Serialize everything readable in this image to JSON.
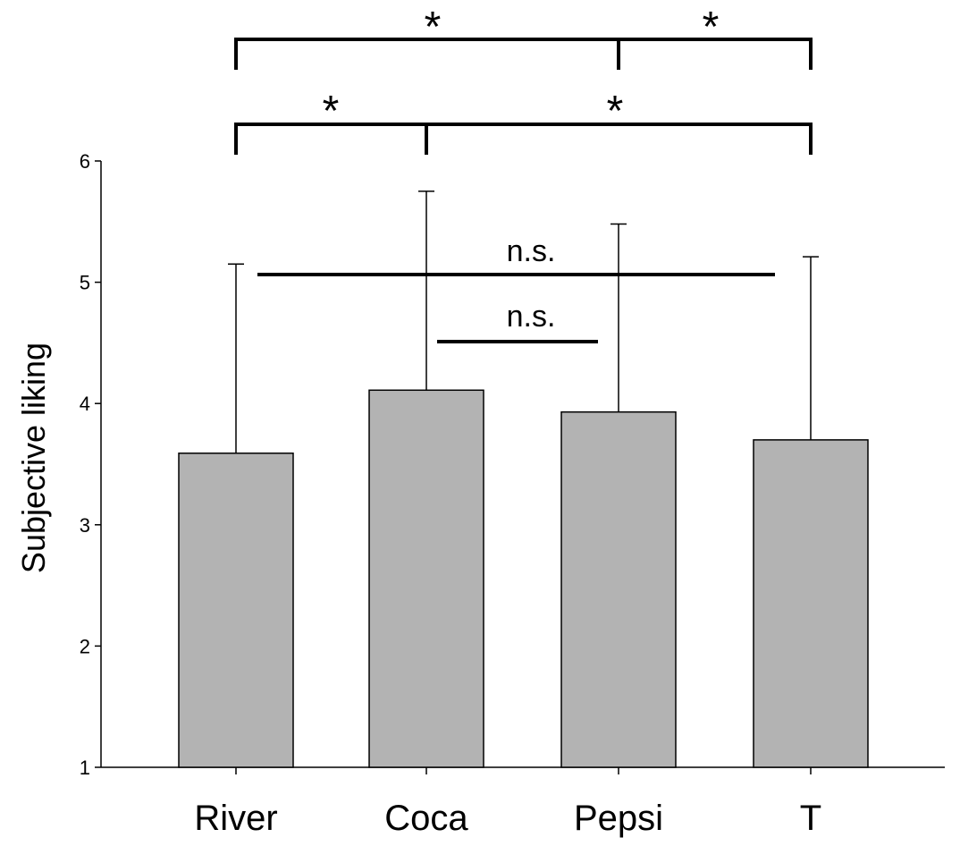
{
  "chart_data": {
    "type": "bar",
    "title": "",
    "xlabel": "",
    "ylabel": "Subjective liking",
    "categories": [
      "River",
      "Coca",
      "Pepsi",
      "T"
    ],
    "values": [
      3.59,
      4.11,
      3.93,
      3.7
    ],
    "error_upper": [
      5.15,
      5.75,
      5.48,
      5.21
    ],
    "ylim": [
      1,
      6
    ],
    "yticks": [
      "1",
      "2",
      "3",
      "4",
      "5",
      "6"
    ],
    "bar_color": "#b3b3b3",
    "grid": false,
    "significance": [
      {
        "from": "River",
        "to": "Pepsi",
        "label": "*"
      },
      {
        "from": "Pepsi",
        "to": "T",
        "label": "*"
      },
      {
        "from": "River",
        "to": "Coca",
        "label": "*"
      },
      {
        "from": "Coca",
        "to": "T",
        "label": "*"
      },
      {
        "from": "River",
        "to": "T",
        "label": "n.s."
      },
      {
        "from": "Coca",
        "to": "Pepsi",
        "label": "n.s."
      }
    ]
  }
}
